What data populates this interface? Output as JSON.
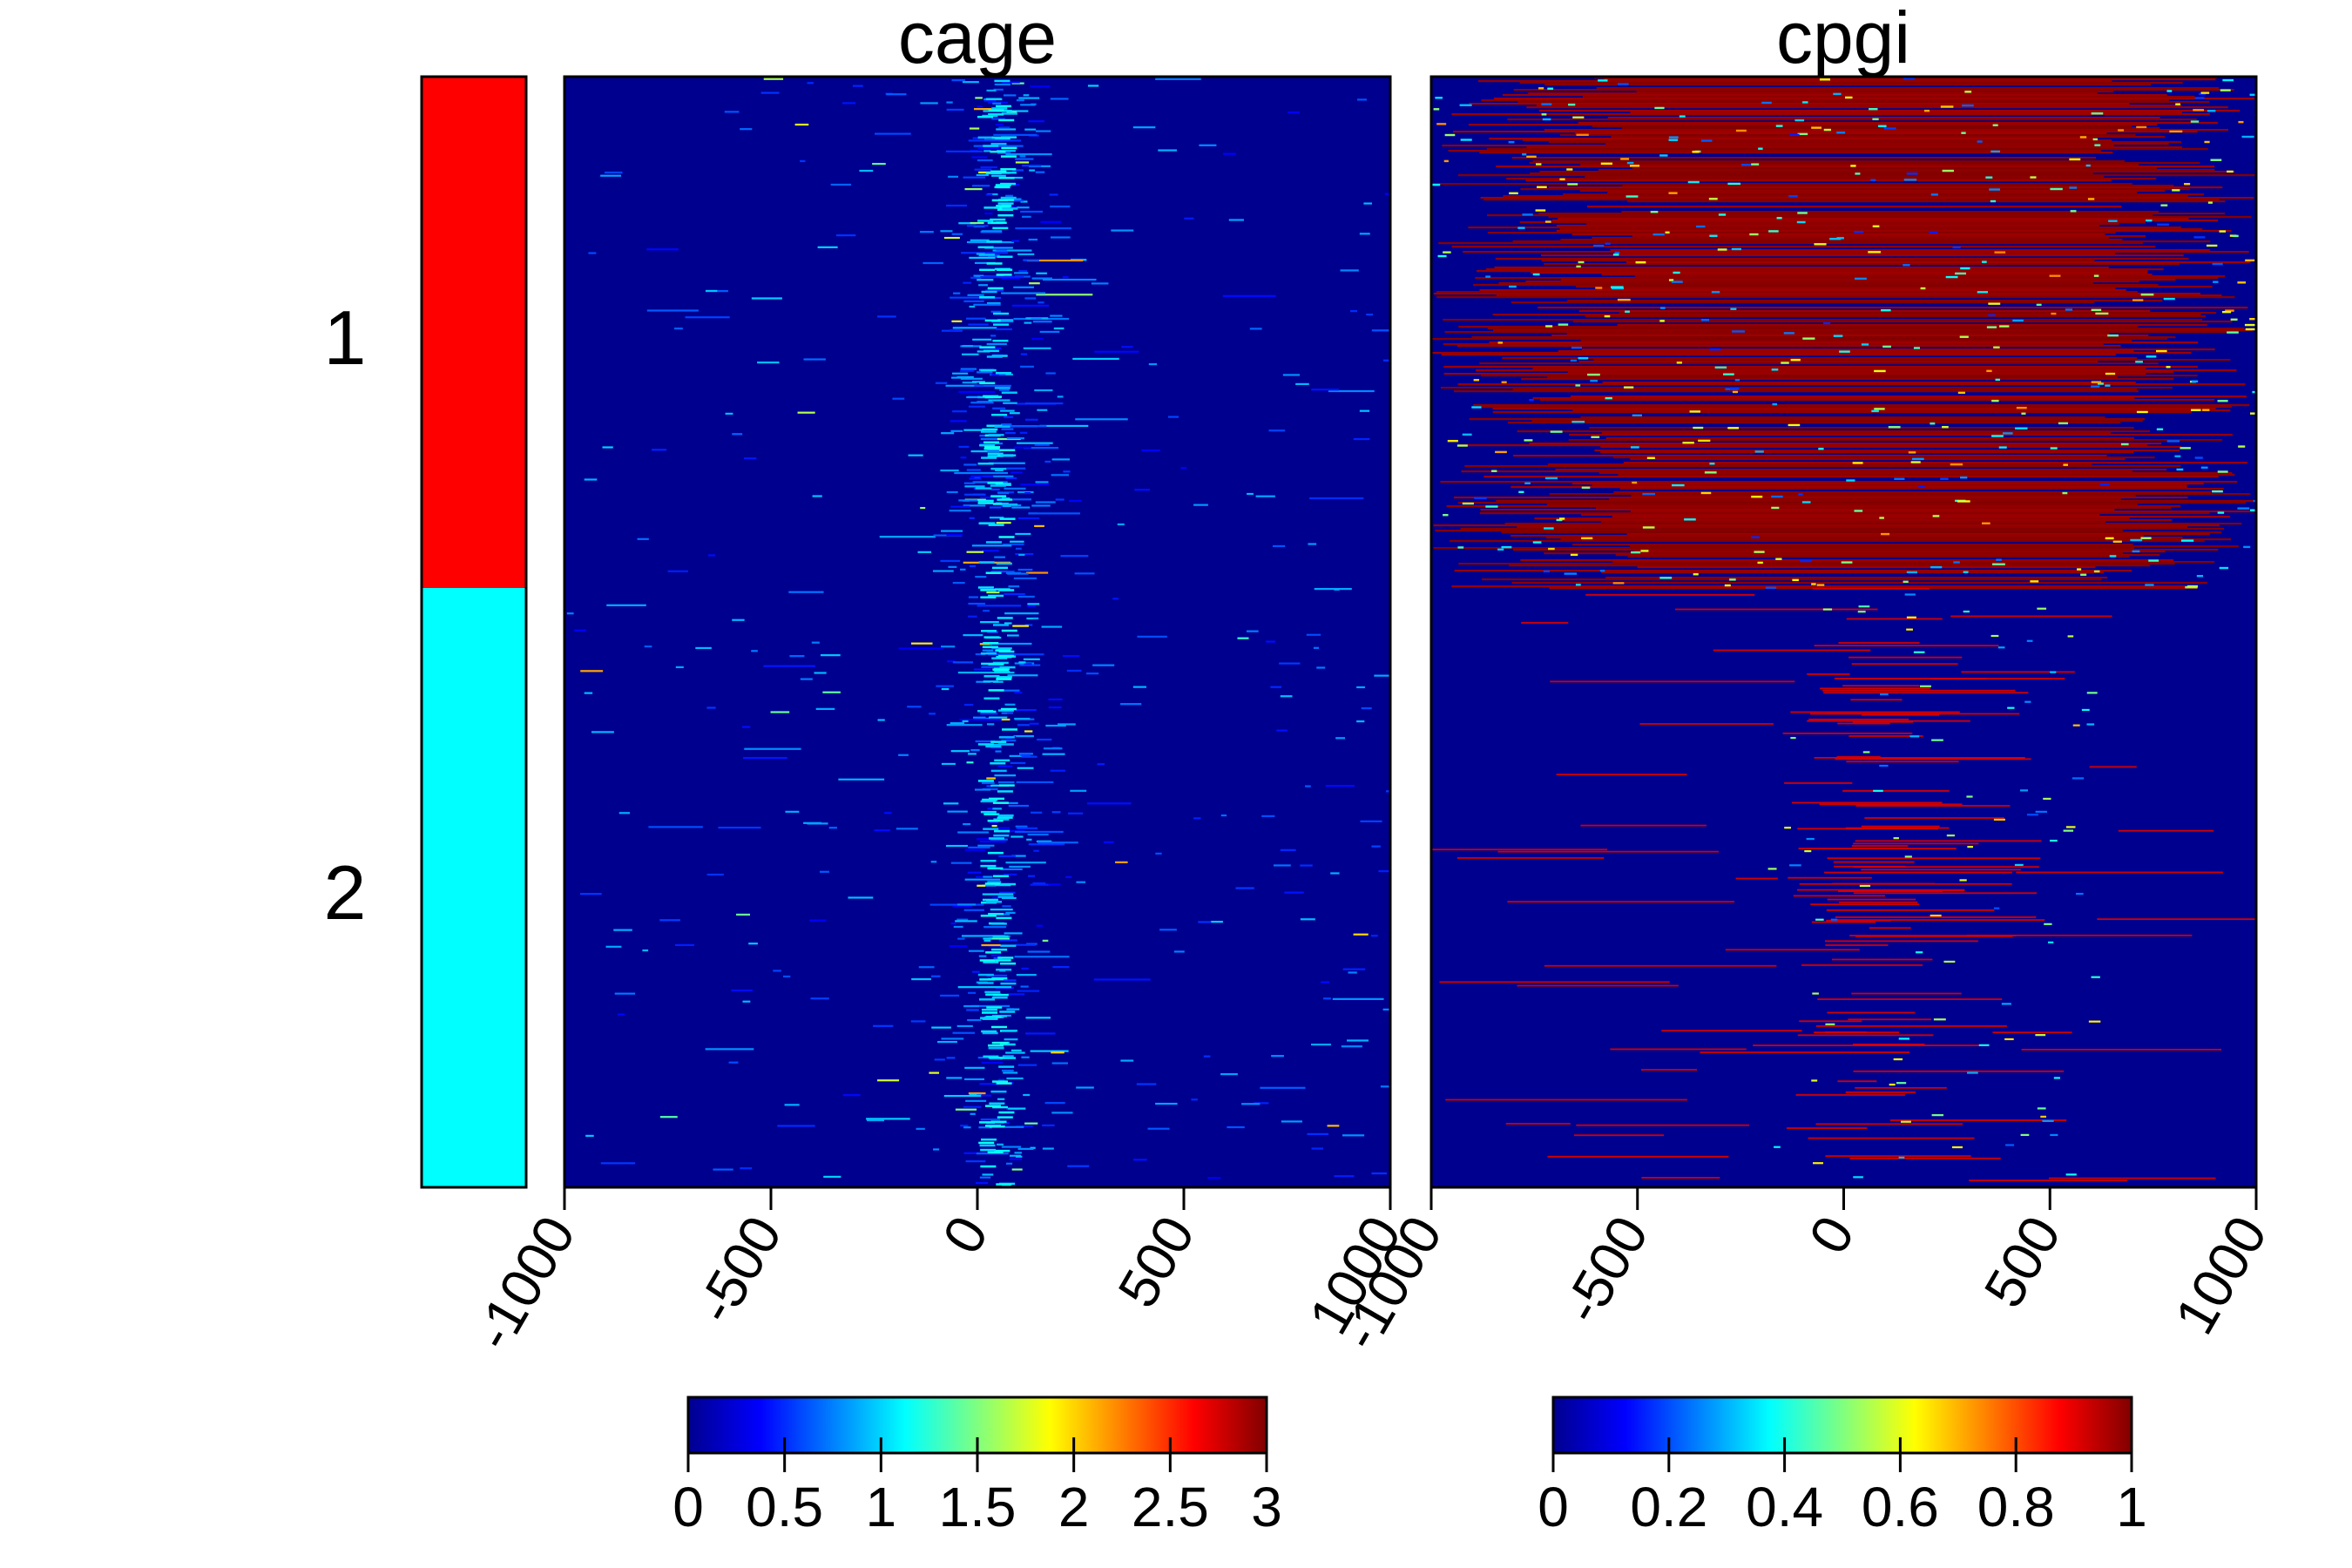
{
  "chart_data": {
    "type": "heatmap",
    "clusters": {
      "labels": [
        "1",
        "2"
      ],
      "colors": [
        "#ff0000",
        "#00ffff"
      ],
      "row_fractions": [
        0.46,
        0.54
      ]
    },
    "panels": [
      {
        "title": "cage",
        "x_range": [
          -1000,
          1000
        ],
        "x_ticks": [
          -1000,
          -500,
          0,
          500,
          1000
        ],
        "x_tick_labels": [
          "-1000",
          "-500",
          "0",
          "500",
          "1000"
        ],
        "tick_rotation": "-60deg",
        "value_range": [
          0,
          3
        ],
        "colorbar_ticks": [
          0,
          0.5,
          1,
          1.5,
          2,
          2.5,
          3
        ],
        "colorbar_tick_labels": [
          "0",
          "0.5",
          "1",
          "1.5",
          "2",
          "2.5",
          "3"
        ],
        "colormap": "jet",
        "pattern": "sparse signal concentrated near 0 (around +50 bp) in both clusters, stronger in cluster 1"
      },
      {
        "title": "cpgi",
        "x_range": [
          -1000,
          1000
        ],
        "x_ticks": [
          -1000,
          -500,
          0,
          500,
          1000
        ],
        "x_tick_labels": [
          "-1000",
          "-500",
          "0",
          "500",
          "1000"
        ],
        "tick_rotation": "-60deg",
        "value_range": [
          0,
          1
        ],
        "colorbar_ticks": [
          0,
          0.2,
          0.4,
          0.6,
          0.8,
          1
        ],
        "colorbar_tick_labels": [
          "0",
          "0.2",
          "0.4",
          "0.6",
          "0.8",
          "1"
        ],
        "colormap": "jet",
        "pattern": "cluster 1 mostly high (~1) across the window; cluster 2 mostly 0 with scattered high rows around 0 to +500"
      }
    ],
    "colors": {
      "low": "#00008f",
      "high": "#800000",
      "background": "#ffffff"
    }
  }
}
